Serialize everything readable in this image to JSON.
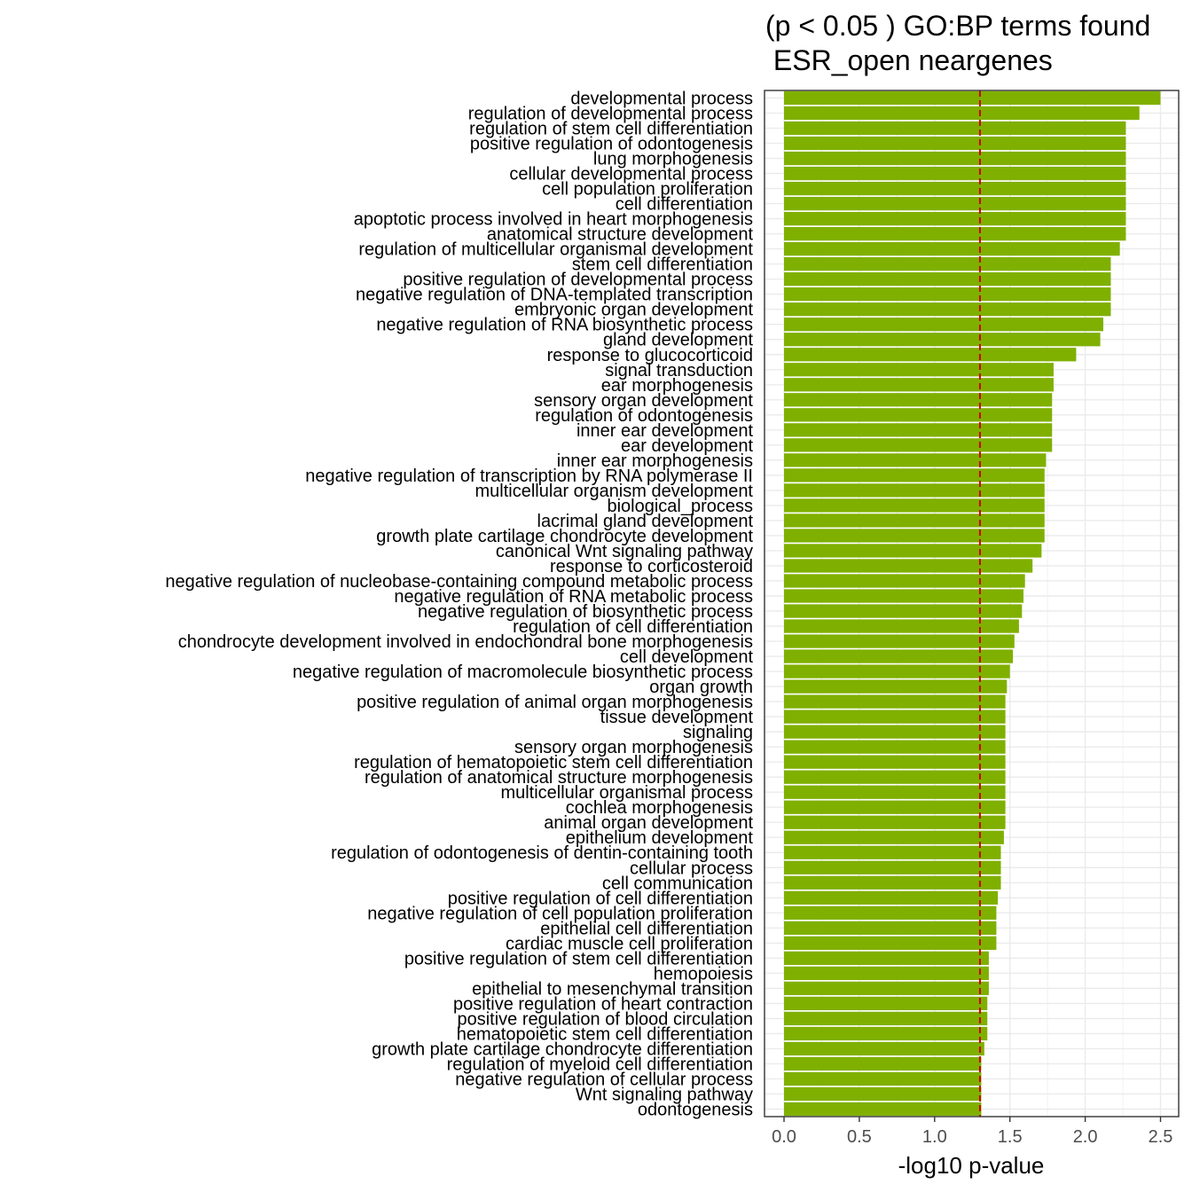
{
  "chart_data": {
    "type": "bar",
    "orientation": "horizontal",
    "title_lines": [
      "(p < 0.05 ) GO:BP terms found",
      " ESR_open neargenes"
    ],
    "xlabel": "-log10 p-value",
    "ylabel": "",
    "xlim": [
      -0.13,
      2.6
    ],
    "x_ticks": [
      "0.0",
      "0.5",
      "1.0",
      "1.5",
      "2.0",
      "2.5"
    ],
    "grid": true,
    "bar_color": "#7fb000",
    "threshold": {
      "value": 1.301,
      "color": "#cc0000",
      "style": "dashed"
    },
    "categories": [
      "developmental process",
      "regulation of developmental process",
      "regulation of stem cell differentiation",
      "positive regulation of odontogenesis",
      "lung morphogenesis",
      "cellular developmental process",
      "cell population proliferation",
      "cell differentiation",
      "apoptotic process involved in heart morphogenesis",
      "anatomical structure development",
      "regulation of multicellular organismal development",
      "stem cell differentiation",
      "positive regulation of developmental process",
      "negative regulation of DNA-templated transcription",
      "embryonic organ development",
      "negative regulation of RNA biosynthetic process",
      "gland development",
      "response to glucocorticoid",
      "signal transduction",
      "ear morphogenesis",
      "sensory organ development",
      "regulation of odontogenesis",
      "inner ear development",
      "ear development",
      "inner ear morphogenesis",
      "negative regulation of transcription by RNA polymerase II",
      "multicellular organism development",
      "biological_process",
      "lacrimal gland development",
      "growth plate cartilage chondrocyte development",
      "canonical Wnt signaling pathway",
      "response to corticosteroid",
      "negative regulation of nucleobase-containing compound metabolic process",
      "negative regulation of RNA metabolic process",
      "negative regulation of biosynthetic process",
      "regulation of cell differentiation",
      "chondrocyte development involved in endochondral bone morphogenesis",
      "cell development",
      "negative regulation of macromolecule biosynthetic process",
      "organ growth",
      "positive regulation of animal organ morphogenesis",
      "tissue development",
      "signaling",
      "sensory organ morphogenesis",
      "regulation of hematopoietic stem cell differentiation",
      "regulation of anatomical structure morphogenesis",
      "multicellular organismal process",
      "cochlea morphogenesis",
      "animal organ development",
      "epithelium development",
      "regulation of odontogenesis of dentin-containing tooth",
      "cellular process",
      "cell communication",
      "positive regulation of cell differentiation",
      "negative regulation of cell population proliferation",
      "epithelial cell differentiation",
      "cardiac muscle cell proliferation",
      "positive regulation of stem cell differentiation",
      "hemopoiesis",
      "epithelial to mesenchymal transition",
      "positive regulation of heart contraction",
      "positive regulation of blood circulation",
      "hematopoietic stem cell differentiation",
      "growth plate cartilage chondrocyte differentiation",
      "regulation of myeloid cell differentiation",
      "negative regulation of cellular process",
      "Wnt signaling pathway",
      "odontogenesis"
    ],
    "values": [
      2.5,
      2.36,
      2.27,
      2.27,
      2.27,
      2.27,
      2.27,
      2.27,
      2.27,
      2.27,
      2.23,
      2.17,
      2.17,
      2.17,
      2.17,
      2.12,
      2.1,
      1.94,
      1.79,
      1.79,
      1.78,
      1.78,
      1.78,
      1.78,
      1.74,
      1.73,
      1.73,
      1.73,
      1.73,
      1.73,
      1.71,
      1.65,
      1.6,
      1.59,
      1.58,
      1.56,
      1.53,
      1.52,
      1.5,
      1.48,
      1.47,
      1.47,
      1.47,
      1.47,
      1.47,
      1.47,
      1.47,
      1.47,
      1.47,
      1.46,
      1.44,
      1.44,
      1.44,
      1.42,
      1.41,
      1.41,
      1.41,
      1.36,
      1.36,
      1.36,
      1.35,
      1.35,
      1.35,
      1.33,
      1.31,
      1.31,
      1.31,
      1.31
    ]
  }
}
